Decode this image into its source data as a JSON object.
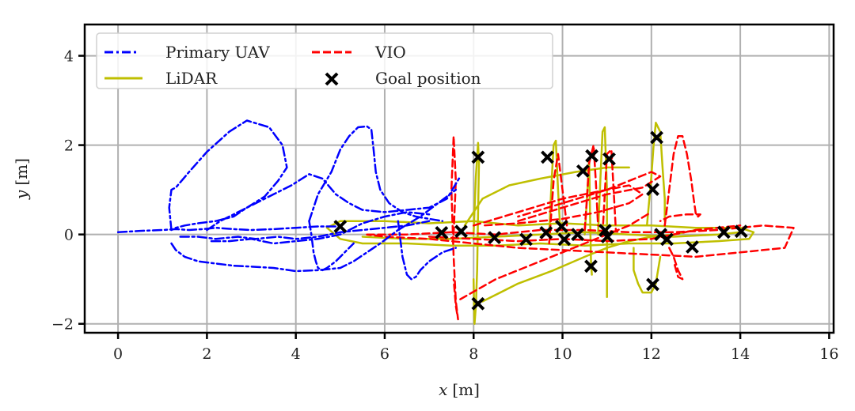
{
  "chart_data": {
    "type": "line",
    "title": "",
    "xlabel": "x [m]",
    "ylabel": "y [m]",
    "xlabel_var": "x",
    "xlabel_unit": "[m]",
    "ylabel_var": "y",
    "ylabel_unit": "[m]",
    "xlim": [
      -0.75,
      16.1
    ],
    "ylim": [
      -2.2,
      4.7
    ],
    "xticks": [
      0,
      2,
      4,
      6,
      8,
      10,
      12,
      14,
      16
    ],
    "xtick_labels": [
      "0",
      "2",
      "4",
      "6",
      "8",
      "10",
      "12",
      "14",
      "16"
    ],
    "yticks": [
      -2,
      0,
      2,
      4
    ],
    "ytick_labels": [
      "−2",
      "0",
      "2",
      "4"
    ],
    "grid": true,
    "legend_position": "top-left",
    "colors": {
      "primary_uav": "#0000ff",
      "vio": "#ff0000",
      "lidar": "#bfbf00",
      "goal": "#000000",
      "grid": "#b0b0b0"
    },
    "legend": [
      {
        "label": "Primary UAV",
        "style": "dashdot",
        "color": "#0000ff"
      },
      {
        "label": "VIO",
        "style": "dashed",
        "color": "#ff0000"
      },
      {
        "label": "LiDAR",
        "style": "solid",
        "color": "#bfbf00"
      },
      {
        "label": "Goal position",
        "style": "marker-x",
        "color": "#000000"
      }
    ],
    "series": [
      {
        "name": "Primary UAV",
        "style": "dashdot",
        "paths": [
          {
            "x": [
              0.0,
              0.5,
              1.0,
              1.3,
              1.6,
              1.9,
              2.2,
              2.6,
              3.0,
              3.5,
              4.0,
              4.5,
              5.0
            ],
            "y": [
              0.05,
              0.08,
              0.1,
              0.12,
              0.1,
              0.12,
              0.15,
              0.12,
              0.1,
              0.12,
              0.15,
              0.18,
              0.18
            ]
          },
          {
            "x": [
              1.2,
              1.15,
              1.2,
              1.3,
              1.6,
              2.0,
              2.5,
              2.9,
              3.4,
              3.7,
              3.8,
              3.6,
              3.3,
              2.9,
              2.6,
              2.2,
              1.8,
              1.5,
              1.3,
              1.2
            ],
            "y": [
              0.1,
              0.6,
              1.0,
              1.05,
              1.4,
              1.85,
              2.3,
              2.55,
              2.4,
              2.0,
              1.5,
              1.2,
              0.85,
              0.6,
              0.4,
              0.3,
              0.25,
              0.2,
              0.15,
              0.1
            ]
          },
          {
            "x": [
              1.2,
              1.3,
              1.5,
              1.8,
              2.2,
              2.6,
              3.0,
              3.5,
              4.0,
              4.5,
              5.0,
              5.3,
              5.6,
              5.9,
              6.3,
              6.8,
              7.2,
              7.6
            ],
            "y": [
              -0.2,
              -0.35,
              -0.5,
              -0.6,
              -0.65,
              -0.7,
              -0.72,
              -0.75,
              -0.82,
              -0.8,
              -0.75,
              -0.6,
              -0.4,
              -0.2,
              0.1,
              0.4,
              0.7,
              1.0
            ]
          },
          {
            "x": [
              4.3,
              4.5,
              4.8,
              5.0,
              5.2,
              5.4,
              5.6,
              5.7,
              5.75,
              5.8,
              5.9,
              6.1,
              6.4,
              6.7,
              7.0,
              7.3
            ],
            "y": [
              0.3,
              0.9,
              1.4,
              1.9,
              2.2,
              2.4,
              2.42,
              2.35,
              1.9,
              1.4,
              1.0,
              0.7,
              0.5,
              0.4,
              0.35,
              0.3
            ]
          },
          {
            "x": [
              2.0,
              2.3,
              2.7,
              3.1,
              3.5,
              3.9,
              4.3,
              4.6,
              4.9,
              5.2,
              5.5,
              6.0,
              6.5,
              7.0,
              7.4,
              7.7
            ],
            "y": [
              0.1,
              0.3,
              0.5,
              0.7,
              0.9,
              1.1,
              1.35,
              1.25,
              0.9,
              0.7,
              0.55,
              0.5,
              0.55,
              0.6,
              0.8,
              1.3
            ]
          },
          {
            "x": [
              4.3,
              4.35,
              4.4,
              4.45,
              4.5,
              4.6,
              4.7,
              4.9,
              5.1,
              5.3
            ],
            "y": [
              0.3,
              0.0,
              -0.4,
              -0.6,
              -0.75,
              -0.8,
              -0.75,
              -0.6,
              -0.4,
              -0.2
            ]
          },
          {
            "x": [
              6.3,
              6.35,
              6.4,
              6.5,
              6.6,
              6.7,
              6.8,
              7.0,
              7.3,
              7.6
            ],
            "y": [
              0.3,
              -0.1,
              -0.5,
              -0.9,
              -1.0,
              -0.95,
              -0.8,
              -0.6,
              -0.4,
              -0.3
            ]
          },
          {
            "x": [
              1.4,
              1.8,
              2.2,
              2.7,
              3.1,
              3.6,
              4.0,
              4.5,
              5.0,
              5.5,
              6.0,
              6.5,
              7.0
            ],
            "y": [
              -0.05,
              -0.05,
              -0.1,
              -0.05,
              -0.1,
              -0.05,
              -0.1,
              -0.05,
              0.05,
              0.1,
              0.15,
              0.2,
              0.3
            ]
          },
          {
            "x": [
              2.1,
              2.5,
              3.0,
              3.5,
              4.0,
              4.5,
              5.0,
              5.5,
              6.0,
              6.5,
              7.0
            ],
            "y": [
              -0.15,
              -0.15,
              -0.1,
              -0.2,
              -0.15,
              -0.1,
              0.0,
              0.25,
              0.4,
              0.5,
              0.45
            ]
          }
        ]
      },
      {
        "name": "VIO",
        "style": "dashed",
        "paths": [
          {
            "x": [
              5.6,
              6.5,
              7.5,
              8.5,
              9.5,
              10.5,
              11.5,
              12.5,
              13.5,
              14.5,
              15.2,
              15.0,
              14.0,
              13.0,
              12.0,
              11.0,
              10.0,
              9.0,
              8.0,
              7.0,
              6.0,
              5.6
            ],
            "y": [
              0.0,
              0.0,
              0.05,
              0.0,
              0.1,
              0.1,
              0.05,
              0.05,
              0.1,
              0.2,
              0.15,
              -0.3,
              -0.4,
              -0.5,
              -0.45,
              -0.4,
              -0.35,
              -0.3,
              -0.2,
              -0.1,
              -0.05,
              0.0
            ]
          },
          {
            "x": [
              7.55,
              7.6,
              7.55,
              7.5,
              7.55,
              7.6,
              7.65,
              7.6,
              7.55
            ],
            "y": [
              0.0,
              1.2,
              2.2,
              1.0,
              -0.5,
              -1.5,
              -1.9,
              -1.6,
              -1.0
            ]
          },
          {
            "x": [
              7.7,
              8.5,
              9.0,
              9.5,
              10.0,
              10.5,
              11.0,
              11.5,
              12.0
            ],
            "y": [
              -1.45,
              -1.0,
              -0.8,
              -0.6,
              -0.4,
              -0.2,
              0.0,
              0.2,
              0.5
            ]
          },
          {
            "x": [
              9.7,
              9.75,
              9.8,
              9.9,
              10.0,
              10.1
            ],
            "y": [
              -0.2,
              0.5,
              1.2,
              1.8,
              1.0,
              0.2
            ]
          },
          {
            "x": [
              10.5,
              10.55,
              10.6,
              10.7,
              10.75,
              10.8
            ],
            "y": [
              0.1,
              0.8,
              1.6,
              2.0,
              1.2,
              0.2
            ]
          },
          {
            "x": [
              10.9,
              10.95,
              11.0,
              11.1,
              11.15,
              11.2
            ],
            "y": [
              0.0,
              0.9,
              1.8,
              1.9,
              1.0,
              0.1
            ]
          },
          {
            "x": [
              12.3,
              12.4,
              12.5,
              12.6,
              12.7,
              12.8,
              12.9,
              12.95,
              13.0,
              13.05,
              13.1,
              12.8,
              12.4,
              12.2
            ],
            "y": [
              0.2,
              1.0,
              1.8,
              2.2,
              2.2,
              1.8,
              1.2,
              0.8,
              0.45,
              0.4,
              0.45,
              0.45,
              0.4,
              0.3
            ]
          },
          {
            "x": [
              8.0,
              9.0,
              10.0,
              11.0,
              11.5,
              11.8,
              11.5,
              10.8,
              10.0,
              9.0,
              8.2
            ],
            "y": [
              0.2,
              0.5,
              0.8,
              1.0,
              1.1,
              0.9,
              0.7,
              0.5,
              0.35,
              0.25,
              0.2
            ]
          },
          {
            "x": [
              9.0,
              10.0,
              11.0,
              11.8,
              12.2,
              12.0,
              11.0,
              10.0,
              9.0
            ],
            "y": [
              0.3,
              0.6,
              0.9,
              1.05,
              1.3,
              1.4,
              1.0,
              0.7,
              0.4
            ]
          },
          {
            "x": [
              12.4,
              12.5,
              12.6,
              12.7,
              12.6,
              12.5
            ],
            "y": [
              -0.3,
              -0.5,
              -0.8,
              -1.0,
              -0.95,
              -0.6
            ]
          },
          {
            "x": [
              7.0,
              8.0,
              9.0,
              10.0,
              11.0,
              12.0,
              13.0,
              14.0
            ],
            "y": [
              -0.05,
              -0.1,
              -0.15,
              -0.1,
              -0.15,
              -0.1,
              0.1,
              0.2
            ]
          }
        ]
      },
      {
        "name": "LiDAR",
        "style": "solid",
        "paths": [
          {
            "x": [
              4.7,
              5.0,
              5.3,
              5.5,
              6.0,
              7.0,
              8.0,
              9.0,
              10.0,
              11.0,
              12.0,
              13.0,
              14.0,
              14.3,
              14.2,
              13.5,
              12.5,
              11.5,
              10.5,
              9.5,
              8.5,
              7.5,
              6.5,
              5.5,
              5.0,
              4.7
            ],
            "y": [
              0.15,
              0.3,
              0.3,
              0.3,
              0.3,
              0.25,
              0.3,
              0.2,
              0.25,
              0.2,
              0.2,
              0.15,
              0.15,
              0.05,
              -0.1,
              -0.15,
              -0.2,
              -0.2,
              -0.25,
              -0.2,
              -0.25,
              -0.25,
              -0.2,
              -0.2,
              -0.1,
              0.15
            ]
          },
          {
            "x": [
              8.0,
              8.05,
              8.1,
              8.12,
              8.1,
              8.08,
              8.05,
              8.02,
              8.0
            ],
            "y": [
              0.0,
              1.3,
              2.05,
              1.6,
              0.5,
              -0.8,
              -1.6,
              -2.0,
              -1.0
            ]
          },
          {
            "x": [
              7.8,
              8.2,
              8.8,
              9.5,
              10.3,
              11.0,
              11.5
            ],
            "y": [
              0.2,
              0.8,
              1.1,
              1.25,
              1.4,
              1.5,
              1.5
            ]
          },
          {
            "x": [
              9.7,
              9.75,
              9.8,
              9.85,
              9.9,
              9.95
            ],
            "y": [
              0.0,
              1.1,
              2.0,
              2.1,
              1.0,
              0.1
            ]
          },
          {
            "x": [
              10.8,
              10.85,
              10.9,
              10.95,
              11.0,
              11.0
            ],
            "y": [
              0.0,
              1.2,
              2.3,
              2.4,
              1.0,
              -1.4
            ]
          },
          {
            "x": [
              10.5,
              10.55,
              10.6,
              10.62,
              10.64,
              10.66
            ],
            "y": [
              0.0,
              0.8,
              1.7,
              0.5,
              -0.6,
              -0.9
            ]
          },
          {
            "x": [
              11.9,
              12.0,
              12.05,
              12.1,
              12.2,
              12.25,
              12.3,
              12.3
            ],
            "y": [
              0.2,
              1.3,
              2.0,
              2.5,
              2.3,
              1.5,
              0.8,
              0.3
            ]
          },
          {
            "x": [
              11.6,
              11.6,
              11.7,
              11.8,
              12.0,
              12.1,
              12.2
            ],
            "y": [
              -0.3,
              -0.8,
              -1.1,
              -1.3,
              -1.3,
              -1.1,
              -0.5
            ]
          },
          {
            "x": [
              8.2,
              9.0,
              9.8,
              10.5,
              11.0,
              11.5,
              12.0,
              12.5,
              13.0
            ],
            "y": [
              -1.5,
              -1.1,
              -0.8,
              -0.5,
              -0.3,
              -0.15,
              -0.05,
              0.0,
              0.1
            ]
          },
          {
            "x": [
              5.5,
              6.5,
              7.5,
              8.5,
              9.5,
              10.5,
              11.5,
              12.5,
              13.5,
              14.0
            ],
            "y": [
              -0.05,
              -0.1,
              -0.1,
              -0.05,
              0.0,
              0.05,
              0.0,
              -0.05,
              0.0,
              0.05
            ]
          }
        ]
      }
    ],
    "goal_positions": {
      "x": [
        5.0,
        7.28,
        7.72,
        8.1,
        8.1,
        8.47,
        9.18,
        9.63,
        9.66,
        9.98,
        10.04,
        10.34,
        10.46,
        10.66,
        10.64,
        11.05,
        10.96,
        11.01,
        12.03,
        12.12,
        12.03,
        12.21,
        12.35,
        12.92,
        13.63,
        14.02
      ],
      "y": [
        0.18,
        0.04,
        0.07,
        1.73,
        -1.55,
        -0.07,
        -0.11,
        0.04,
        1.73,
        0.18,
        -0.11,
        0.0,
        1.42,
        1.76,
        -0.71,
        1.69,
        0.09,
        -0.05,
        1.01,
        2.17,
        -1.12,
        0.0,
        -0.11,
        -0.28,
        0.05,
        0.07
      ]
    }
  }
}
